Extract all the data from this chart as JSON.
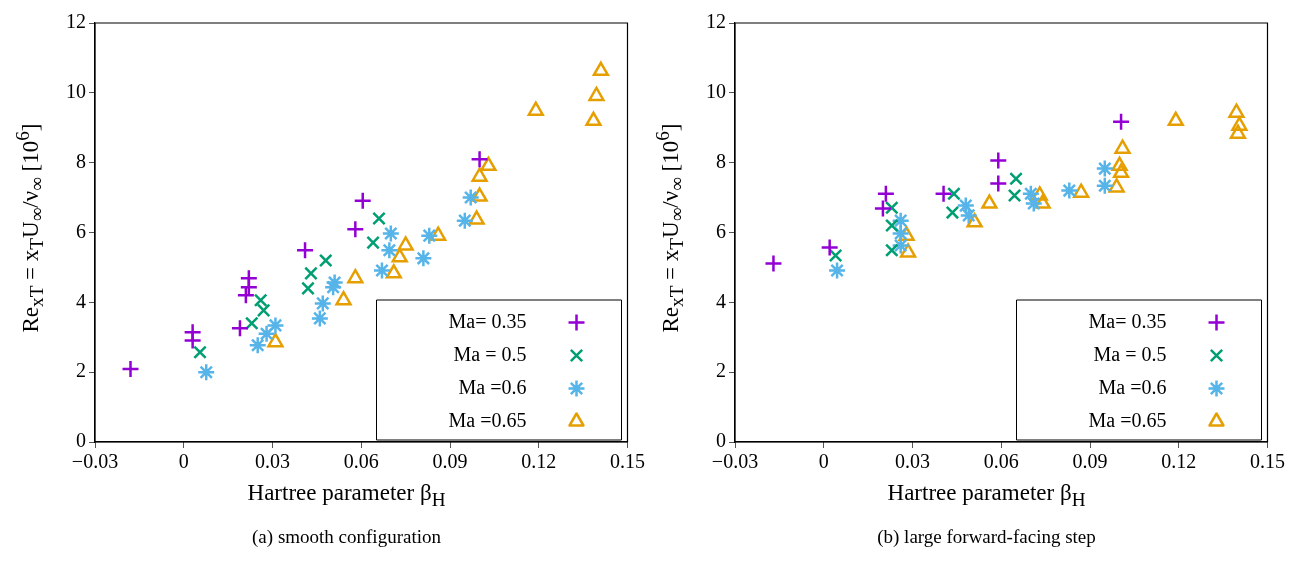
{
  "chart_data": [
    {
      "type": "scatter",
      "xlabel": "Hartree parameter β$_{H}$",
      "ylabel": "Re$_{xT}$ = x$_{T}$U$_{∞}$/ν$_{∞}$   [10$^{6}$]",
      "annotations": [
        "(a) smooth configuration"
      ],
      "xlim": [
        -0.03,
        0.15
      ],
      "ylim": [
        0,
        12
      ],
      "xticks": [
        {
          "value": -0.03,
          "label": "−0.03"
        },
        0,
        0.03,
        0.06,
        0.09,
        0.12,
        0.15
      ],
      "yticks": [
        0,
        2,
        4,
        6,
        8,
        10,
        12
      ],
      "grid": false,
      "legend": "bottom right",
      "series": [
        {
          "name": "Ma= 0.35",
          "color": "#9400d3",
          "marker": "plus",
          "x": [
            -0.018,
            0.003,
            0.003,
            0.022,
            0.022,
            0.021,
            0.019,
            0.041,
            0.0605,
            0.058,
            0.1
          ],
          "values": [
            2.09,
            3.14,
            2.91,
            4.69,
            4.43,
            4.2,
            3.26,
            5.49,
            6.91,
            6.09,
            8.1
          ]
        },
        {
          "name": "Ma = 0.5",
          "color": "#009e73",
          "marker": "x",
          "x": [
            0.0055,
            0.023,
            0.026,
            0.027,
            0.042,
            0.043,
            0.048,
            0.064,
            0.066
          ],
          "values": [
            2.57,
            3.4,
            4.06,
            3.77,
            4.4,
            4.83,
            5.2,
            5.71,
            6.4
          ]
        },
        {
          "name": "Ma =0.6",
          "color": "#56b4e9",
          "marker": "cross",
          "x": [
            0.0076,
            0.025,
            0.031,
            0.028,
            0.046,
            0.047,
            0.051,
            0.0505,
            0.07,
            0.0695,
            0.067,
            0.081,
            0.083,
            0.097,
            0.095
          ],
          "values": [
            2.0,
            2.77,
            3.34,
            3.1,
            3.54,
            3.97,
            4.57,
            4.43,
            5.97,
            5.49,
            4.91,
            5.26,
            5.91,
            7.0,
            6.34
          ]
        },
        {
          "name": "Ma =0.65",
          "color": "#e69f00",
          "marker": "triangle",
          "x": [
            0.031,
            0.054,
            0.058,
            0.071,
            0.073,
            0.075,
            0.086,
            0.099,
            0.1,
            0.1,
            0.103,
            0.119,
            0.1385,
            0.1395,
            0.141
          ],
          "values": [
            2.86,
            4.06,
            4.69,
            4.83,
            5.29,
            5.63,
            5.91,
            6.37,
            7.03,
            7.6,
            7.91,
            9.49,
            9.2,
            9.91,
            10.63
          ]
        }
      ]
    },
    {
      "type": "scatter",
      "xlabel": "Hartree parameter β$_{H}$",
      "ylabel": "Re$_{xT}$ = x$_{T}$U$_{∞}$/ν$_{∞}$   [10$^{6}$]",
      "annotations": [
        "(b) large forward-facing step"
      ],
      "xlim": [
        -0.03,
        0.15
      ],
      "ylim": [
        0,
        12
      ],
      "xticks": [
        {
          "value": -0.03,
          "label": "−0.03"
        },
        0,
        0.03,
        0.06,
        0.09,
        0.12,
        0.15
      ],
      "yticks": [
        0,
        2,
        4,
        6,
        8,
        10,
        12
      ],
      "grid": false,
      "legend": "bottom right",
      "series": [
        {
          "name": "Ma= 0.35",
          "color": "#9400d3",
          "marker": "plus",
          "x": [
            -0.017,
            0.002,
            0.021,
            0.02,
            0.0405,
            0.059,
            0.059,
            0.1005
          ],
          "values": [
            5.11,
            5.57,
            7.11,
            6.69,
            7.11,
            8.06,
            7.4,
            9.17
          ]
        },
        {
          "name": "Ma = 0.5",
          "color": "#009e73",
          "marker": "x",
          "x": [
            0.004,
            0.023,
            0.023,
            0.023,
            0.044,
            0.0435,
            0.065,
            0.0645
          ],
          "values": [
            5.34,
            6.71,
            6.2,
            5.49,
            7.11,
            6.57,
            7.54,
            7.06
          ]
        },
        {
          "name": "Ma =0.6",
          "color": "#56b4e9",
          "marker": "cross",
          "x": [
            0.0045,
            0.026,
            0.026,
            0.026,
            0.048,
            0.049,
            0.07,
            0.071,
            0.083,
            0.095,
            0.095
          ],
          "values": [
            4.91,
            6.34,
            5.97,
            5.63,
            6.77,
            6.49,
            7.11,
            6.83,
            7.2,
            7.83,
            7.34
          ]
        },
        {
          "name": "Ma =0.65",
          "color": "#e69f00",
          "marker": "triangle",
          "x": [
            0.028,
            0.0285,
            0.051,
            0.056,
            0.073,
            0.074,
            0.087,
            0.099,
            0.1005,
            0.1,
            0.101,
            0.119,
            0.1395,
            0.1405,
            0.14
          ],
          "values": [
            5.91,
            5.43,
            6.29,
            6.83,
            7.06,
            6.83,
            7.14,
            7.29,
            7.71,
            7.91,
            8.4,
            9.2,
            9.43,
            9.06,
            8.83
          ]
        }
      ]
    }
  ]
}
